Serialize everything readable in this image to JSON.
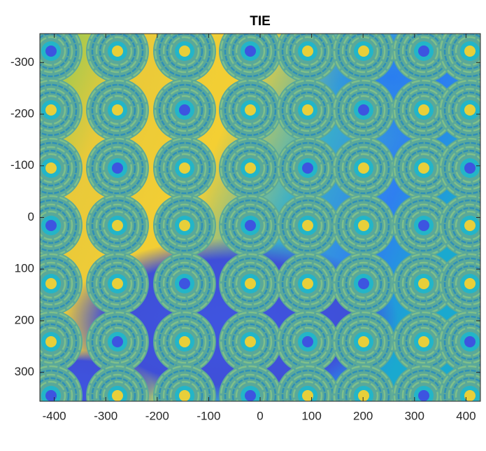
{
  "chart_data": {
    "type": "image",
    "title": "TIE",
    "xlim": [
      -428,
      428
    ],
    "ylim": [
      -356,
      356
    ],
    "y_reversed": true,
    "xticks": [
      -400,
      -300,
      -200,
      -100,
      0,
      100,
      200,
      300,
      400
    ],
    "yticks": [
      -300,
      -200,
      -100,
      0,
      100,
      200,
      300
    ]
  }
}
